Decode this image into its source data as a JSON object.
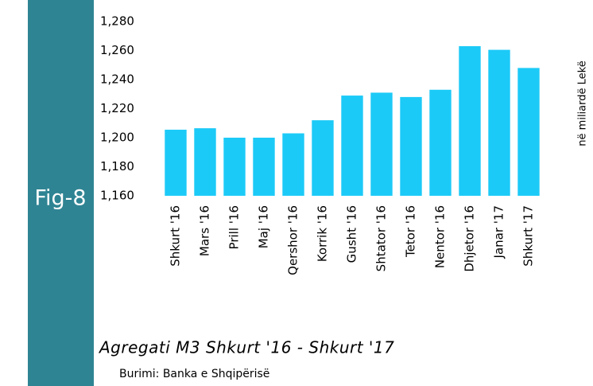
{
  "chart_data": {
    "type": "bar",
    "figure_label": "Fig-8",
    "title": "Agregati M3 Shkurt '16 - Shkurt '17",
    "source": "Burimi: Banka e Shqipërisë",
    "y_label": "në miliardë Lekë",
    "categories": [
      "Shkurt '16",
      "Mars '16",
      "Prill '16",
      "Maj '16",
      "Qershor '16",
      "Korrik '16",
      "Gusht '16",
      "Shtator '16",
      "Tetor '16",
      "Nentor '16",
      "Dhjetor '16",
      "Janar '17",
      "Shkurt '17"
    ],
    "values": [
      1205.5,
      1206.5,
      1200,
      1200,
      1203,
      1212,
      1229,
      1231,
      1228,
      1233,
      1263,
      1260.5,
      1248
    ],
    "color": "#1ccaf7",
    "ylim": [
      1160,
      1280
    ],
    "yticks": [
      {
        "value": 1160,
        "label": "1,160"
      },
      {
        "value": 1180,
        "label": "1,180"
      },
      {
        "value": 1200,
        "label": "1,200"
      },
      {
        "value": 1220,
        "label": "1,220"
      },
      {
        "value": 1240,
        "label": "1,240"
      },
      {
        "value": 1260,
        "label": "1,260"
      },
      {
        "value": 1280,
        "label": "1,280"
      }
    ],
    "grid": false
  }
}
